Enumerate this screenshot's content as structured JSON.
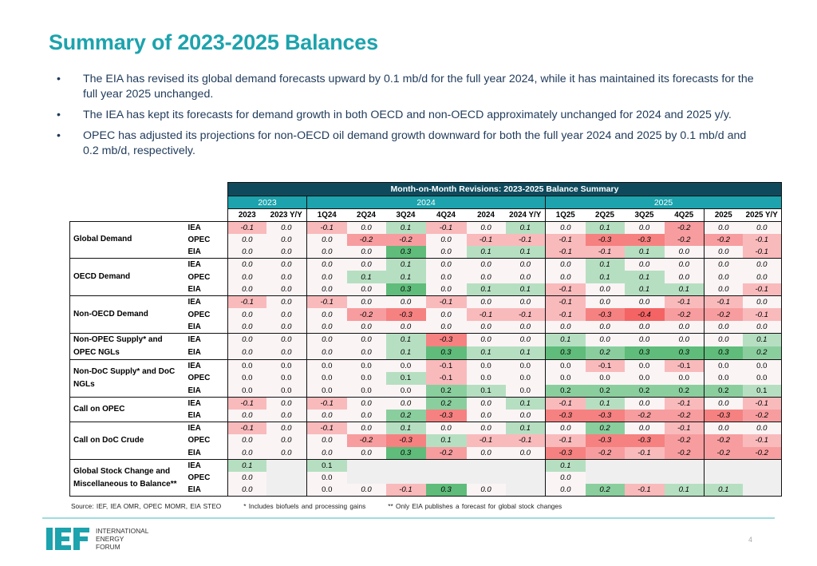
{
  "page": {
    "title": "Summary of 2023-2025 Balances",
    "bullets": [
      "The EIA has revised its global demand forecasts upward by 0.1 mb/d for the full year 2024, while it has maintained its forecasts for the full year 2025 unchanged.",
      "The IEA has kept its forecasts for demand growth in both OECD and non-OECD approximately unchanged for 2024 and 2025 y/y.",
      "OPEC has adjusted its projections for non-OECD oil demand growth downward for both the full year 2024 and 2025 by 0.1 mb/d and 0.2 mb/d, respectively."
    ],
    "bullet_glyph": "•",
    "page_number": "4"
  },
  "table": {
    "title": "Month-on-Month Revisions: 2023-2025 Balance Summary",
    "year_groups": [
      "2023",
      "2024",
      "2025"
    ],
    "columns": [
      "2023",
      "2023 Y/Y",
      "1Q24",
      "2Q24",
      "3Q24",
      "4Q24",
      "2024",
      "2024 Y/Y",
      "1Q25",
      "2Q25",
      "3Q25",
      "4Q25",
      "2025",
      "2025 Y/Y"
    ],
    "groups": [
      {
        "label": "Global Demand",
        "rows": [
          {
            "source": "IEA",
            "values": [
              "-0.1",
              "0.0",
              "-0.1",
              "0.0",
              "0.1",
              "-0.1",
              "0.0",
              "0.1",
              "0.0",
              "0.1",
              "0.0",
              "-0.2",
              "0.0",
              "0.0"
            ]
          },
          {
            "source": "OPEC",
            "values": [
              "0.0",
              "0.0",
              "0.0",
              "-0.2",
              "-0.2",
              "0.0",
              "-0.1",
              "-0.1",
              "-0.1",
              "-0.3",
              "-0.3",
              "-0.2",
              "-0.2",
              "-0.1"
            ]
          },
          {
            "source": "EIA",
            "values": [
              "0.0",
              "0.0",
              "0.0",
              "0.0",
              "0.3",
              "0.0",
              "0.1",
              "0.1",
              "-0.1",
              "-0.1",
              "0.1",
              "0.0",
              "0.0",
              "-0.1"
            ]
          }
        ]
      },
      {
        "label": "OECD Demand",
        "rows": [
          {
            "source": "IEA",
            "values": [
              "0.0",
              "0.0",
              "0.0",
              "0.0",
              "0.1",
              "0.0",
              "0.0",
              "0.0",
              "0.0",
              "0.1",
              "0.0",
              "0.0",
              "0.0",
              "0.0"
            ]
          },
          {
            "source": "OPEC",
            "values": [
              "0.0",
              "0.0",
              "0.0",
              "0.1",
              "0.1",
              "0.0",
              "0.0",
              "0.0",
              "0.0",
              "0.1",
              "0.1",
              "0.0",
              "0.0",
              "0.0"
            ]
          },
          {
            "source": "EIA",
            "values": [
              "0.0",
              "0.0",
              "0.0",
              "0.0",
              "0.3",
              "0.0",
              "0.1",
              "0.1",
              "-0.1",
              "0.0",
              "0.1",
              "0.1",
              "0.0",
              "-0.1"
            ]
          }
        ]
      },
      {
        "label": "Non-OECD Demand",
        "rows": [
          {
            "source": "IEA",
            "values": [
              "-0.1",
              "0.0",
              "-0.1",
              "0.0",
              "0.0",
              "-0.1",
              "0.0",
              "0.0",
              "-0.1",
              "0.0",
              "0.0",
              "-0.1",
              "-0.1",
              "0.0"
            ]
          },
          {
            "source": "OPEC",
            "values": [
              "0.0",
              "0.0",
              "0.0",
              "-0.2",
              "-0.3",
              "0.0",
              "-0.1",
              "-0.1",
              "-0.1",
              "-0.3",
              "-0.4",
              "-0.2",
              "-0.2",
              "-0.1"
            ]
          },
          {
            "source": "EIA",
            "values": [
              "0.0",
              "0.0",
              "0.0",
              "0.0",
              "0.0",
              "0.0",
              "0.0",
              "0.0",
              "0.0",
              "0.0",
              "0.0",
              "0.0",
              "0.0",
              "0.0"
            ]
          }
        ]
      },
      {
        "label": "Non-OPEC Supply* and OPEC NGLs",
        "rows": [
          {
            "source": "IEA",
            "values": [
              "0.0",
              "0.0",
              "0.0",
              "0.0",
              "0.1",
              "-0.3",
              "0.0",
              "0.0",
              "0.1",
              "0.0",
              "0.0",
              "0.0",
              "0.0",
              "0.1"
            ]
          },
          {
            "source": "EIA",
            "values": [
              "0.0",
              "0.0",
              "0.0",
              "0.0",
              "0.1",
              "0.3",
              "0.1",
              "0.1",
              "0.3",
              "0.2",
              "0.3",
              "0.3",
              "0.3",
              "0.2"
            ]
          }
        ]
      },
      {
        "label": "Non-DoC Supply* and DoC NGLs",
        "plain": true,
        "rows": [
          {
            "source": "IEA",
            "values": [
              "0.0",
              "0.0",
              "0.0",
              "0.0",
              "0.0",
              "-0.1",
              "0.0",
              "0.0",
              "0.0",
              "-0.1",
              "0.0",
              "-0.1",
              "0.0",
              "0.0"
            ]
          },
          {
            "source": "OPEC",
            "values": [
              "0.0",
              "0.0",
              "0.0",
              "0.0",
              "0.1",
              "-0.1",
              "0.0",
              "0.0",
              "0.0",
              "0.0",
              "0.0",
              "0.0",
              "0.0",
              "0.0"
            ]
          },
          {
            "source": "EIA",
            "values": [
              "0.0",
              "0.0",
              "0.0",
              "0.0",
              "0.0",
              "0.2",
              "0.1",
              "0.0",
              "0.2",
              "0.2",
              "0.2",
              "0.2",
              "0.2",
              "0.1"
            ]
          }
        ]
      },
      {
        "label": "Call on OPEC",
        "rows": [
          {
            "source": "IEA",
            "values": [
              "-0.1",
              "0.0",
              "-0.1",
              "0.0",
              "0.0",
              "0.2",
              "0.0",
              "0.1",
              "-0.1",
              "0.1",
              "0.0",
              "-0.1",
              "0.0",
              "-0.1"
            ]
          },
          {
            "source": "EIA",
            "values": [
              "0.0",
              "0.0",
              "0.0",
              "0.0",
              "0.2",
              "-0.3",
              "0.0",
              "0.0",
              "-0.3",
              "-0.3",
              "-0.2",
              "-0.2",
              "-0.3",
              "-0.2"
            ]
          }
        ]
      },
      {
        "label": "Call on DoC Crude",
        "rows": [
          {
            "source": "IEA",
            "values": [
              "-0.1",
              "0.0",
              "-0.1",
              "0.0",
              "0.1",
              "0.0",
              "0.0",
              "0.1",
              "0.0",
              "0.2",
              "0.0",
              "-0.1",
              "0.0",
              "0.0"
            ]
          },
          {
            "source": "OPEC",
            "values": [
              "0.0",
              "0.0",
              "0.0",
              "-0.2",
              "-0.3",
              "0.1",
              "-0.1",
              "-0.1",
              "-0.1",
              "-0.3",
              "-0.3",
              "-0.2",
              "-0.2",
              "-0.1"
            ]
          },
          {
            "source": "EIA",
            "values": [
              "0.0",
              "0.0",
              "0.0",
              "0.0",
              "0.3",
              "-0.2",
              "0.0",
              "0.0",
              "-0.3",
              "-0.2",
              "-0.1",
              "-0.2",
              "-0.2",
              "-0.2"
            ]
          }
        ]
      },
      {
        "label": "Global Stock Change and Miscellaneous to Balance**",
        "rows": [
          {
            "source": "IEA",
            "values": [
              "0.1",
              null,
              "0.1",
              null,
              null,
              null,
              null,
              null,
              "0.1",
              null,
              null,
              null,
              null,
              null
            ],
            "plain_cols": [
              2
            ]
          },
          {
            "source": "OPEC",
            "values": [
              "0.0",
              null,
              "0.0",
              null,
              null,
              null,
              null,
              null,
              "0.0",
              null,
              null,
              null,
              null,
              null
            ],
            "plain_cols": [
              2
            ]
          },
          {
            "source": "EIA",
            "values": [
              "0.0",
              null,
              "0.0",
              "0.0",
              "-0.1",
              "0.3",
              "0.0",
              null,
              "0.0",
              "0.2",
              "-0.1",
              "0.1",
              "0.1",
              null
            ]
          }
        ]
      }
    ],
    "footnotes": [
      "Source: IEF, IEA OMR, OPEC MOMR, EIA STEO",
      "* Includes biofuels and processing gains",
      "** Only EIA publishes a forecast for global stock changes"
    ],
    "colors": {
      "header_dark": "#0f4a5c",
      "header_teal": "#1ca3ad",
      "positive": "#5fbc7a",
      "negative": "#f46d6d",
      "not_available": "#efefef"
    }
  },
  "footer": {
    "logo_text": [
      "INTERNATIONAL",
      "ENERGY",
      "FORUM"
    ],
    "logo_mark": "IEF",
    "brand_color": "#1ca3ad"
  }
}
